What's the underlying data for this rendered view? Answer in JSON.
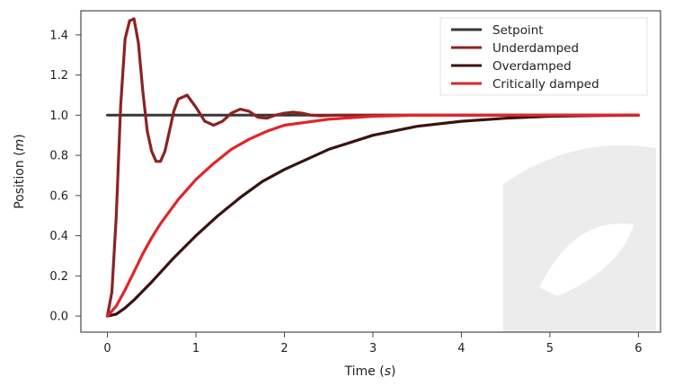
{
  "chart_data": {
    "type": "line",
    "xlabel": "Time",
    "xunit": "s",
    "ylabel": "Position",
    "yunit": "m",
    "xlim": [
      -0.3,
      6.25
    ],
    "ylim": [
      -0.08,
      1.52
    ],
    "xticks": [
      0,
      1,
      2,
      3,
      4,
      5,
      6
    ],
    "yticks": [
      0.0,
      0.2,
      0.4,
      0.6,
      0.8,
      1.0,
      1.2,
      1.4
    ],
    "ytick_labels": [
      "0.0",
      "0.2",
      "0.4",
      "0.6",
      "0.8",
      "1.0",
      "1.2",
      "1.4"
    ],
    "grid": false,
    "legend_position": "top-right",
    "series": [
      {
        "name": "Setpoint",
        "color": "#3a3535",
        "x": [
          0,
          6
        ],
        "y": [
          1.0,
          1.0
        ]
      },
      {
        "name": "Underdamped",
        "color": "#8b2323",
        "x": [
          0.0,
          0.05,
          0.1,
          0.15,
          0.2,
          0.25,
          0.3,
          0.35,
          0.4,
          0.45,
          0.5,
          0.55,
          0.6,
          0.65,
          0.7,
          0.75,
          0.8,
          0.9,
          1.0,
          1.1,
          1.2,
          1.3,
          1.4,
          1.5,
          1.6,
          1.7,
          1.8,
          1.9,
          2.0,
          2.1,
          2.2,
          2.3,
          2.4,
          2.6,
          3.0,
          4.0,
          5.0,
          6.0
        ],
        "y": [
          0.0,
          0.12,
          0.5,
          1.05,
          1.38,
          1.47,
          1.48,
          1.36,
          1.12,
          0.92,
          0.82,
          0.77,
          0.77,
          0.82,
          0.92,
          1.02,
          1.08,
          1.1,
          1.04,
          0.97,
          0.95,
          0.97,
          1.01,
          1.03,
          1.02,
          0.99,
          0.985,
          1.0,
          1.01,
          1.015,
          1.01,
          1.0,
          0.997,
          1.0,
          1.0,
          1.0,
          1.0,
          1.0
        ]
      },
      {
        "name": "Overdamped",
        "color": "#3a1212",
        "x": [
          0.0,
          0.1,
          0.2,
          0.3,
          0.5,
          0.75,
          1.0,
          1.25,
          1.5,
          1.75,
          2.0,
          2.5,
          3.0,
          3.5,
          4.0,
          4.5,
          5.0,
          5.5,
          6.0
        ],
        "y": [
          0.0,
          0.01,
          0.04,
          0.08,
          0.17,
          0.29,
          0.4,
          0.5,
          0.59,
          0.67,
          0.73,
          0.83,
          0.9,
          0.945,
          0.97,
          0.985,
          0.995,
          0.998,
          1.0
        ]
      },
      {
        "name": "Critically damped",
        "color": "#e0252a",
        "x": [
          0.0,
          0.1,
          0.2,
          0.3,
          0.4,
          0.5,
          0.6,
          0.8,
          1.0,
          1.2,
          1.4,
          1.6,
          1.8,
          2.0,
          2.5,
          3.0,
          3.5,
          4.0,
          5.0,
          6.0
        ],
        "y": [
          0.0,
          0.05,
          0.13,
          0.22,
          0.31,
          0.39,
          0.46,
          0.58,
          0.68,
          0.76,
          0.83,
          0.88,
          0.92,
          0.95,
          0.98,
          0.995,
          1.0,
          1.0,
          1.0,
          1.0
        ]
      }
    ]
  }
}
